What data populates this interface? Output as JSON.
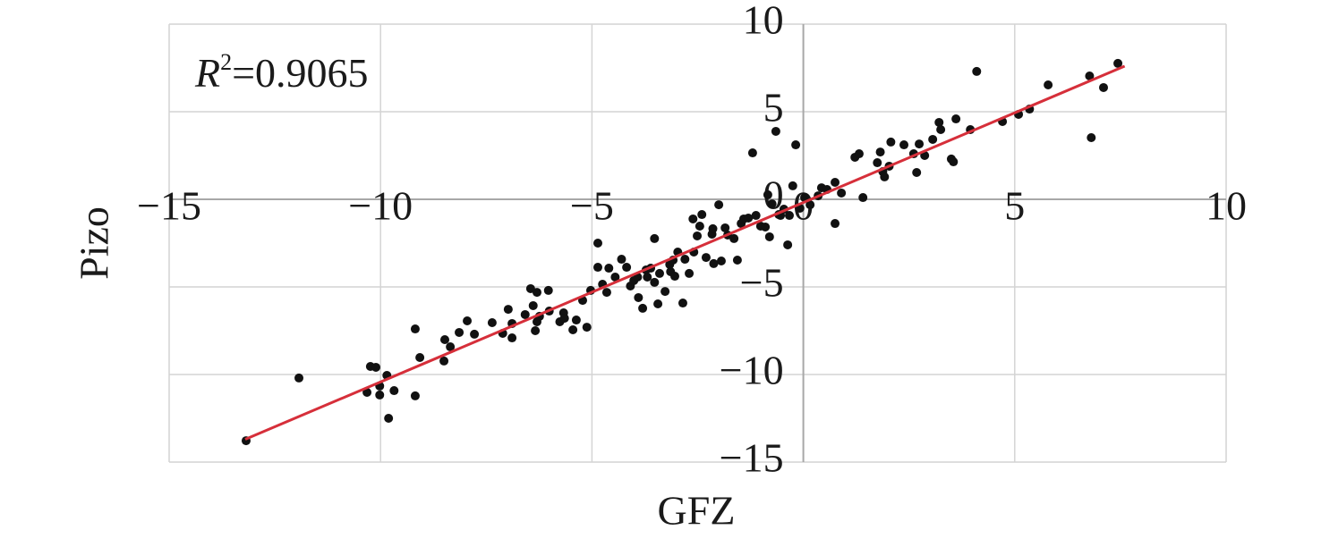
{
  "chart_data": {
    "type": "scatter",
    "x_label": "GFZ",
    "y_label": "Pizo",
    "annotation": {
      "symbol": "R",
      "exponent": "2",
      "text": "=0.9065"
    },
    "color": "#111111",
    "x": [
      -13.18,
      -11.93,
      -10.24,
      -10.11,
      -10.32,
      -10.02,
      -10.02,
      -9.85,
      -9.81,
      -9.68,
      -9.18,
      -9.18,
      -9.07,
      -8.5,
      -8.48,
      -8.35,
      -8.14,
      -7.95,
      -7.78,
      -7.36,
      -7.11,
      -6.98,
      -6.89,
      -6.89,
      -6.58,
      -6.45,
      -6.39,
      -6.3,
      -6.3,
      -6.34,
      -6.24,
      -6.03,
      -6.01,
      -5.76,
      -5.67,
      -5.65,
      -5.45,
      -5.37,
      -5.12,
      -5.22,
      -5.03,
      -4.86,
      -4.86,
      -4.75,
      -4.65,
      -4.6,
      -4.45,
      -4.3,
      -4.18,
      -4.09,
      -4.01,
      -3.92,
      -3.9,
      -3.8,
      -3.72,
      -3.69,
      -3.61,
      -3.52,
      -3.52,
      -3.44,
      -3.4,
      -3.27,
      -3.16,
      -3.14,
      -3.08,
      -3.04,
      -2.97,
      -2.85,
      -2.8,
      -2.7,
      -2.61,
      -2.59,
      -2.51,
      -2.45,
      -2.4,
      -2.3,
      -2.16,
      -2.14,
      -2.12,
      -2.0,
      -1.94,
      -1.85,
      -1.79,
      -1.64,
      -1.56,
      -1.47,
      -1.41,
      -1.3,
      -1.2,
      -1.12,
      -1.01,
      -0.9,
      -0.84,
      -0.8,
      -0.74,
      -0.65,
      -0.58,
      -0.54,
      -0.46,
      -0.37,
      -0.33,
      -0.25,
      -0.18,
      -0.08,
      0.03,
      0.16,
      0.35,
      0.43,
      0.56,
      0.75,
      0.75,
      0.9,
      1.22,
      1.32,
      1.41,
      1.75,
      1.82,
      1.88,
      1.92,
      2.03,
      2.07,
      2.38,
      2.61,
      2.68,
      2.74,
      2.87,
      3.06,
      3.21,
      3.25,
      3.5,
      3.55,
      3.61,
      3.95,
      4.1,
      4.71,
      5.09,
      5.35,
      5.79,
      6.77,
      6.81,
      7.1,
      7.44
    ],
    "values": [
      -13.78,
      -10.2,
      -9.54,
      -9.59,
      -11.02,
      -10.66,
      -11.17,
      -10.05,
      -12.5,
      -10.92,
      -7.4,
      -11.22,
      -9.03,
      -9.23,
      -8.01,
      -8.42,
      -7.6,
      -6.94,
      -7.7,
      -7.04,
      -7.65,
      -6.28,
      -7.09,
      -7.91,
      -6.58,
      -5.1,
      -6.07,
      -5.31,
      -6.99,
      -7.5,
      -6.68,
      -5.2,
      -6.38,
      -6.99,
      -6.48,
      -6.79,
      -7.45,
      -6.89,
      -7.3,
      -5.77,
      -5.2,
      -2.5,
      -3.88,
      -4.85,
      -5.31,
      -3.93,
      -4.44,
      -3.42,
      -3.88,
      -4.95,
      -4.64,
      -4.44,
      -5.61,
      -6.22,
      -4.03,
      -4.44,
      -3.93,
      -2.24,
      -4.74,
      -5.97,
      -4.23,
      -5.26,
      -3.72,
      -4.13,
      -3.47,
      -4.39,
      -3.01,
      -5.92,
      -3.42,
      -4.23,
      -1.12,
      -3.01,
      -2.09,
      -1.53,
      -0.87,
      -3.32,
      -1.99,
      -1.68,
      -3.67,
      -0.31,
      -3.52,
      -1.63,
      -2.04,
      -2.24,
      -3.47,
      -1.38,
      -1.12,
      -1.07,
      2.65,
      -0.92,
      -1.53,
      -1.58,
      0.26,
      -2.14,
      -0.26,
      3.88,
      -0.87,
      -0.92,
      -0.56,
      -2.6,
      -0.92,
      0.77,
      3.11,
      -0.51,
      0.1,
      -0.31,
      0.2,
      0.66,
      0.56,
      0.97,
      -1.38,
      0.36,
      2.4,
      2.6,
      0.1,
      2.09,
      2.7,
      1.58,
      1.28,
      1.89,
      3.27,
      3.11,
      2.6,
      1.53,
      3.16,
      2.5,
      3.42,
      4.39,
      3.98,
      2.3,
      2.14,
      4.59,
      3.98,
      7.3,
      4.44,
      4.85,
      5.15,
      6.53,
      7.04,
      3.52,
      6.38,
      7.76
    ],
    "trendline": {
      "x": [
        -13.2,
        7.6
      ],
      "values": [
        -13.7,
        7.6
      ],
      "color": "#d62f3a"
    },
    "xlim": [
      -15,
      10
    ],
    "ylim": [
      -15,
      10
    ],
    "xticks": [
      {
        "value": -15,
        "label": "−15"
      },
      {
        "value": -10,
        "label": "−10"
      },
      {
        "value": -5,
        "label": "−5"
      },
      0,
      5,
      10
    ],
    "yticks": [
      {
        "value": -15,
        "label": "−15"
      },
      {
        "value": -10,
        "label": "−10"
      },
      {
        "value": -5,
        "label": "−5"
      },
      0,
      5,
      10
    ],
    "grid": true
  }
}
